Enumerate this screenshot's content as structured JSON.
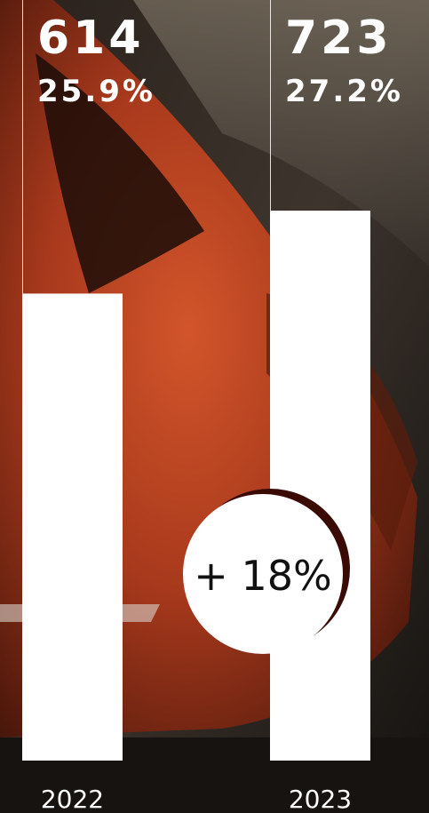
{
  "chart_data": {
    "type": "bar",
    "categories": [
      "2022",
      "2023"
    ],
    "values": [
      614,
      723
    ],
    "share_labels": [
      "25.9%",
      "27.2%"
    ],
    "annotation": "+ 18%",
    "color": "#ffffff",
    "ylim": [
      0,
      1000
    ]
  }
}
